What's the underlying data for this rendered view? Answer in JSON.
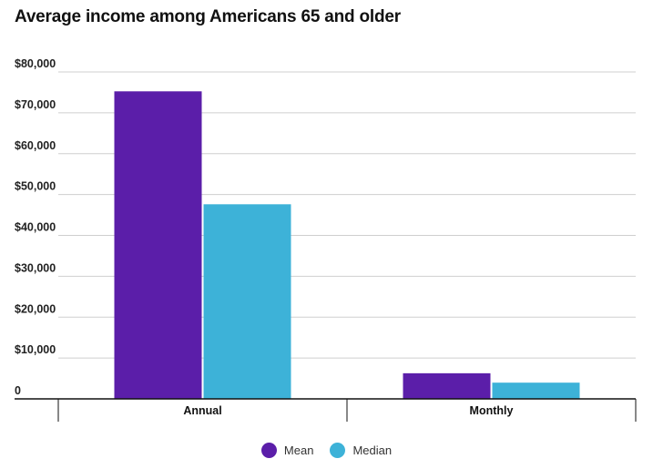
{
  "chart_data": {
    "type": "bar",
    "title": "Average income among Americans 65 and older",
    "categories": [
      "Annual",
      "Monthly"
    ],
    "series": [
      {
        "name": "Mean",
        "values": [
          75254,
          6271
        ],
        "color": "#5b1ea9"
      },
      {
        "name": "Median",
        "values": [
          47620,
          3968
        ],
        "color": "#3db2d8"
      }
    ],
    "yticks": [
      {
        "value": 0,
        "label": "0"
      },
      {
        "value": 10000,
        "label": "$10,000"
      },
      {
        "value": 20000,
        "label": "$20,000"
      },
      {
        "value": 30000,
        "label": "$30,000"
      },
      {
        "value": 40000,
        "label": "$40,000"
      },
      {
        "value": 50000,
        "label": "$50,000"
      },
      {
        "value": 60000,
        "label": "$60,000"
      },
      {
        "value": 70000,
        "label": "$70,000"
      },
      {
        "value": 80000,
        "label": "$80,000"
      }
    ],
    "ylim": [
      0,
      80000
    ],
    "grid": true,
    "legend": "bottom-center"
  }
}
